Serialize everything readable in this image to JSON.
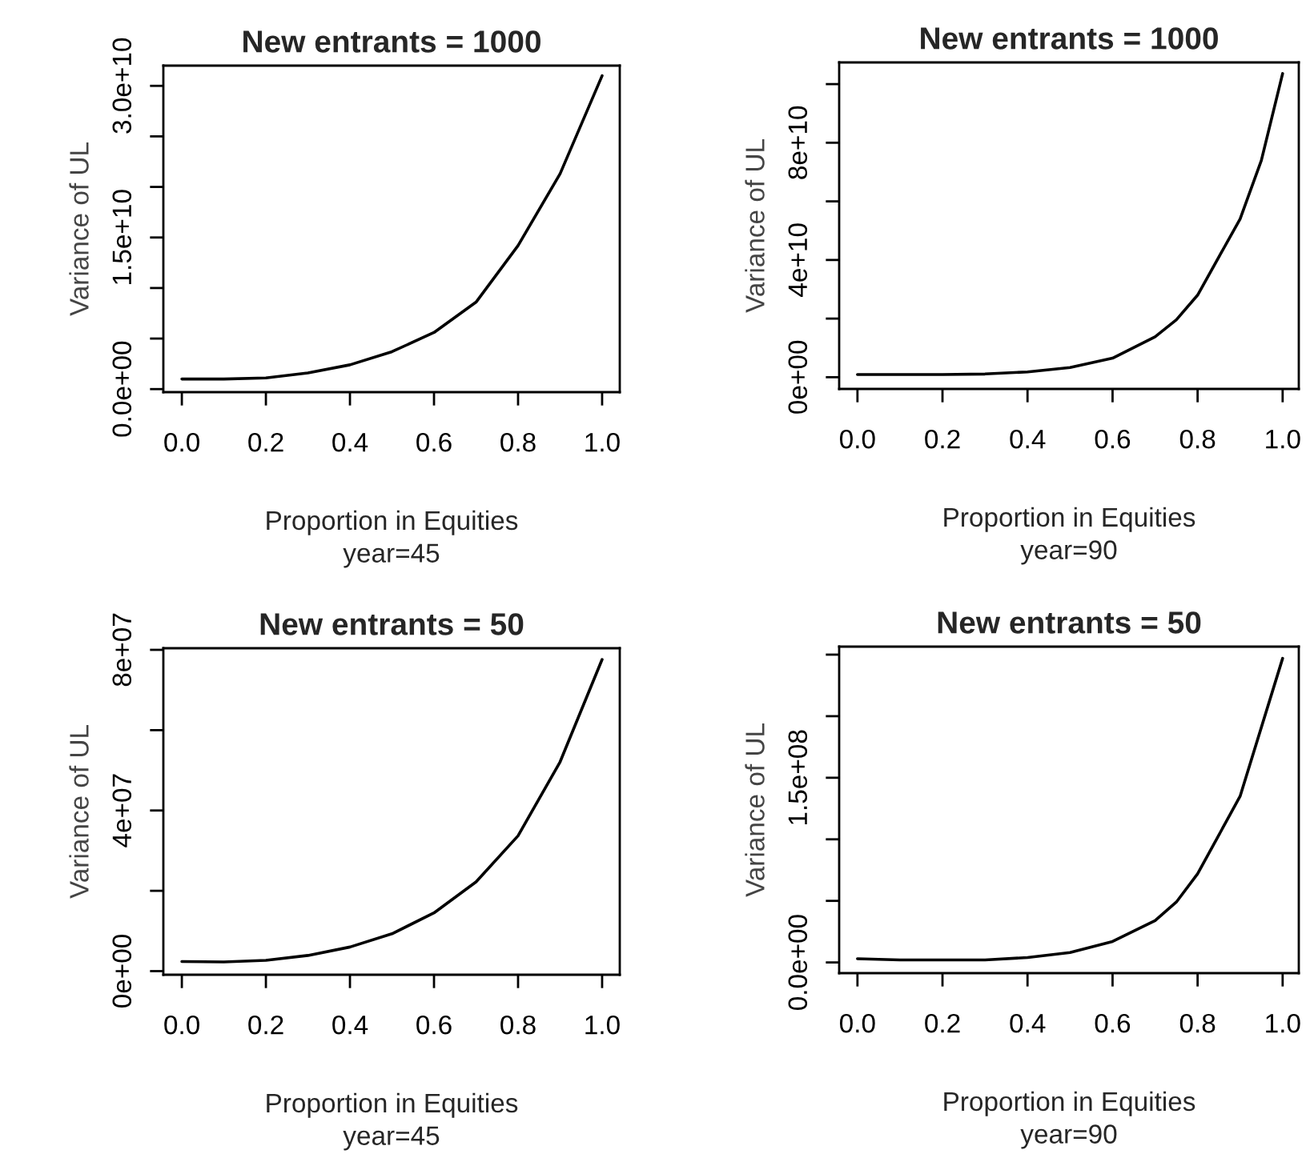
{
  "chart_data": [
    {
      "type": "line",
      "title": "New entrants = 1000",
      "xlabel": "Proportion in Equities",
      "ylabel": "Variance of UL",
      "annotations": [
        "year=45"
      ],
      "x": [
        0,
        0.1,
        0.2,
        0.3,
        0.4,
        0.5,
        0.6,
        0.7,
        0.8,
        0.9,
        1.0
      ],
      "series": [
        {
          "color": "#000000",
          "values": [
            1000000000.0,
            1000000000.0,
            1100000000.0,
            1600000000.0,
            2400000000.0,
            3700000000.0,
            5600000000.0,
            8600000000.0,
            14200000000.0,
            21300000000.0,
            31000000000.0
          ]
        }
      ],
      "xlim": [
        -0.044,
        1.042
      ],
      "ylim": [
        -300000000.0,
        32000000000.0
      ],
      "xticks": [
        {
          "value": 0,
          "label": "0.0"
        },
        {
          "value": 0.2,
          "label": "0.2"
        },
        {
          "value": 0.4,
          "label": "0.4"
        },
        {
          "value": 0.6,
          "label": "0.6"
        },
        {
          "value": 0.8,
          "label": "0.8"
        },
        {
          "value": 1.0,
          "label": "1.0"
        }
      ],
      "yticks": [
        {
          "value": 0,
          "label": "0.0e+00"
        },
        {
          "value": 5000000000.0,
          "label": null
        },
        {
          "value": 10000000000.0,
          "label": null
        },
        {
          "value": 15000000000.0,
          "label": "1.5e+10"
        },
        {
          "value": 20000000000.0,
          "label": null
        },
        {
          "value": 25000000000.0,
          "label": null
        },
        {
          "value": 30000000000.0,
          "label": "3.0e+10"
        }
      ],
      "grid": false,
      "legend": false,
      "marker": "none",
      "line_style": "solid"
    },
    {
      "type": "line",
      "title": "New entrants = 1000",
      "xlabel": "Proportion in Equities",
      "ylabel": "Variance of UL",
      "annotations": [
        "year=90"
      ],
      "x": [
        0,
        0.1,
        0.2,
        0.3,
        0.4,
        0.5,
        0.6,
        0.7,
        0.75,
        0.8,
        0.9,
        0.95,
        1.0
      ],
      "series": [
        {
          "color": "#000000",
          "values": [
            900000000.0,
            900000000.0,
            900000000.0,
            1100000000.0,
            1800000000.0,
            3300000000.0,
            6500000000.0,
            13800000000.0,
            19600000000.0,
            28000000000.0,
            54000000000.0,
            74000000000.0,
            103600000000.0
          ]
        }
      ],
      "xlim": [
        -0.043,
        1.038
      ],
      "ylim": [
        -4000000000.0,
        107400000000.0
      ],
      "xticks": [
        {
          "value": 0,
          "label": "0.0"
        },
        {
          "value": 0.2,
          "label": "0.2"
        },
        {
          "value": 0.4,
          "label": "0.4"
        },
        {
          "value": 0.6,
          "label": "0.6"
        },
        {
          "value": 0.8,
          "label": "0.8"
        },
        {
          "value": 1.0,
          "label": "1.0"
        }
      ],
      "yticks": [
        {
          "value": 0,
          "label": "0e+00"
        },
        {
          "value": 20000000000.0,
          "label": null
        },
        {
          "value": 40000000000.0,
          "label": "4e+10"
        },
        {
          "value": 60000000000.0,
          "label": null
        },
        {
          "value": 80000000000.0,
          "label": "8e+10"
        },
        {
          "value": 100000000000.0,
          "label": null
        }
      ],
      "grid": false,
      "legend": false,
      "marker": "none",
      "line_style": "solid"
    },
    {
      "type": "line",
      "title": "New entrants = 50",
      "xlabel": "Proportion in Equities",
      "ylabel": "Variance of UL",
      "annotations": [
        "year=45"
      ],
      "x": [
        0,
        0.1,
        0.2,
        0.3,
        0.4,
        0.5,
        0.6,
        0.7,
        0.8,
        0.9,
        1.0
      ],
      "series": [
        {
          "color": "#000000",
          "values": [
            2400000.0,
            2300000.0,
            2700000.0,
            3900000.0,
            6000000.0,
            9300000.0,
            14500000.0,
            22200000.0,
            33700000.0,
            52100000.0,
            77600000.0
          ]
        }
      ],
      "xlim": [
        -0.044,
        1.042
      ],
      "ylim": [
        -900000.0,
        80400000.0
      ],
      "xticks": [
        {
          "value": 0,
          "label": "0.0"
        },
        {
          "value": 0.2,
          "label": "0.2"
        },
        {
          "value": 0.4,
          "label": "0.4"
        },
        {
          "value": 0.6,
          "label": "0.6"
        },
        {
          "value": 0.8,
          "label": "0.8"
        },
        {
          "value": 1.0,
          "label": "1.0"
        }
      ],
      "yticks": [
        {
          "value": 0,
          "label": "0e+00"
        },
        {
          "value": 20000000.0,
          "label": null
        },
        {
          "value": 40000000.0,
          "label": "4e+07"
        },
        {
          "value": 60000000.0,
          "label": null
        },
        {
          "value": 80000000.0,
          "label": "8e+07"
        }
      ],
      "grid": false,
      "legend": false,
      "marker": "none",
      "line_style": "solid"
    },
    {
      "type": "line",
      "title": "New entrants = 50",
      "xlabel": "Proportion in Equities",
      "ylabel": "Variance of UL",
      "annotations": [
        "year=90"
      ],
      "x": [
        0,
        0.1,
        0.2,
        0.3,
        0.4,
        0.5,
        0.6,
        0.7,
        0.75,
        0.8,
        0.9,
        1.0
      ],
      "series": [
        {
          "color": "#000000",
          "values": [
            3000000.0,
            2000000.0,
            2000000.0,
            2000000.0,
            4000000.0,
            8000000.0,
            17000000.0,
            34000000.0,
            49000000.0,
            72000000.0,
            135000000.0,
            247000000.0
          ]
        }
      ],
      "xlim": [
        -0.043,
        1.038
      ],
      "ylim": [
        -8700000.0,
        256500000.0
      ],
      "xticks": [
        {
          "value": 0,
          "label": "0.0"
        },
        {
          "value": 0.2,
          "label": "0.2"
        },
        {
          "value": 0.4,
          "label": "0.4"
        },
        {
          "value": 0.6,
          "label": "0.6"
        },
        {
          "value": 0.8,
          "label": "0.8"
        },
        {
          "value": 1.0,
          "label": "1.0"
        }
      ],
      "yticks": [
        {
          "value": 0,
          "label": "0.0e+00"
        },
        {
          "value": 50000000.0,
          "label": null
        },
        {
          "value": 100000000.0,
          "label": null
        },
        {
          "value": 150000000.0,
          "label": "1.5e+08"
        },
        {
          "value": 200000000.0,
          "label": null
        },
        {
          "value": 250000000.0,
          "label": null
        }
      ],
      "grid": false,
      "legend": false,
      "marker": "none",
      "line_style": "solid"
    }
  ]
}
